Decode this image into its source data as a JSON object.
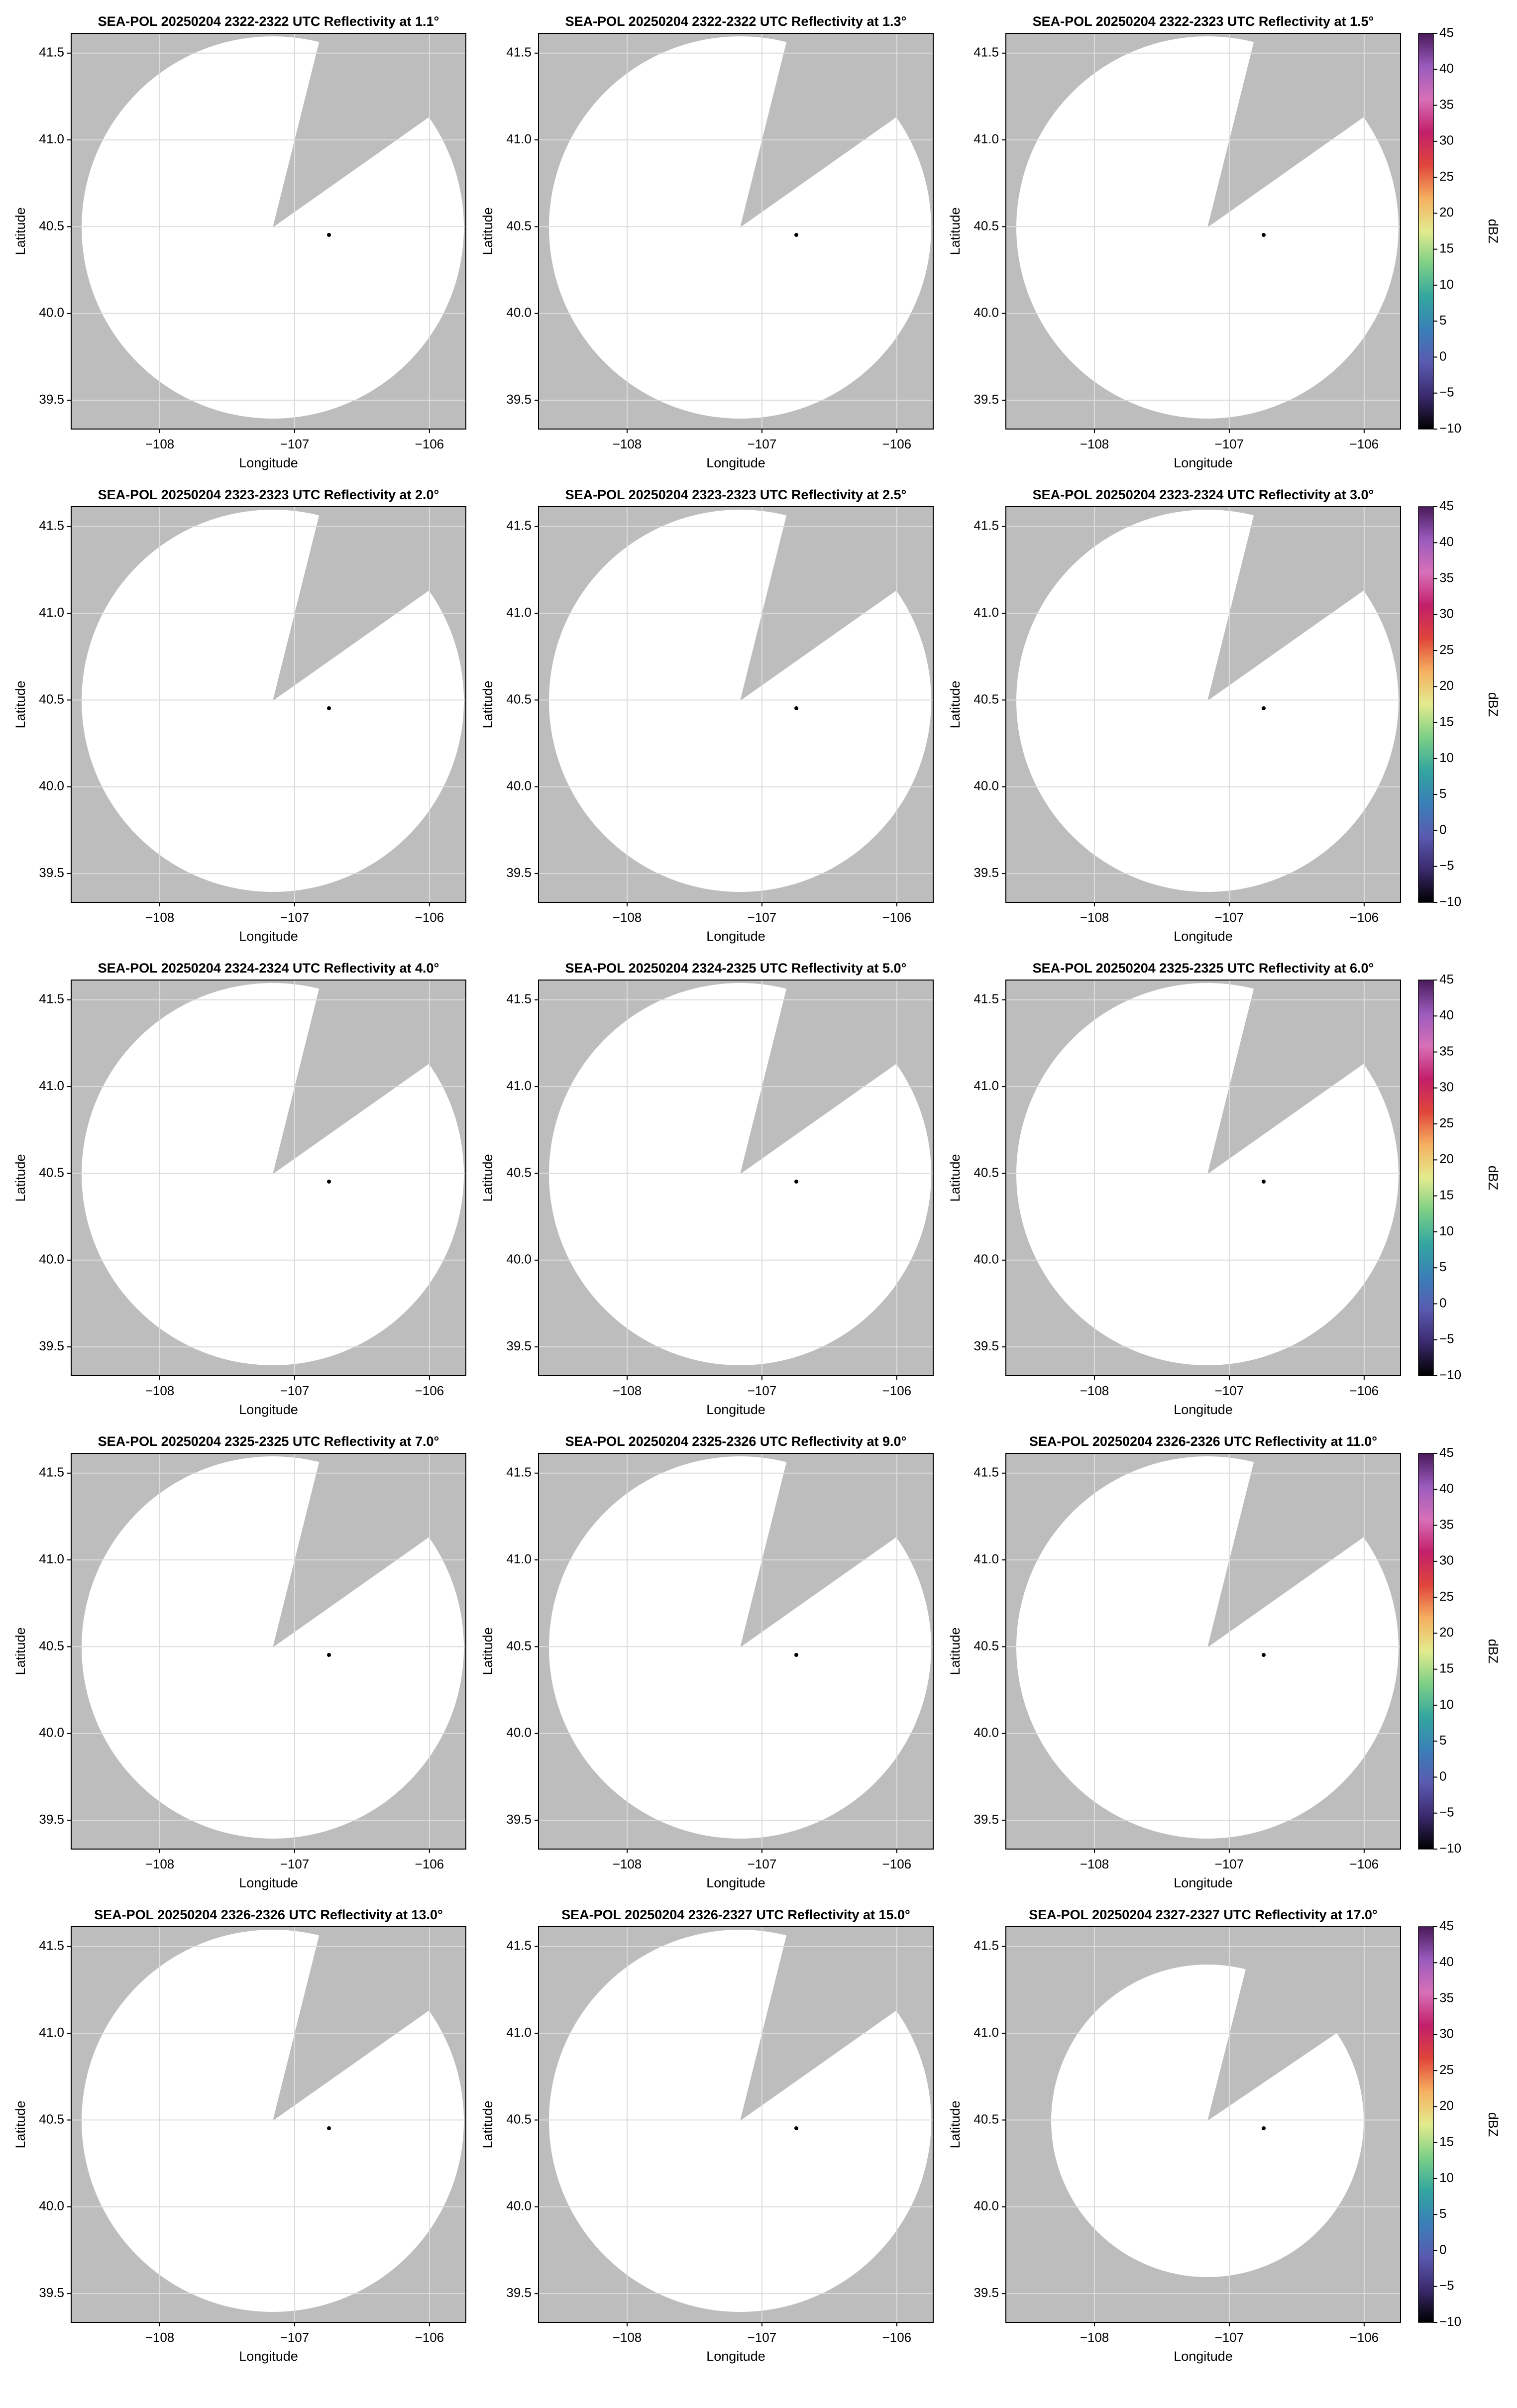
{
  "chart_data": [
    {
      "type": "map",
      "title": "SEA-POL 20250204 2322-2322 UTC Reflectivity at 1.1°",
      "xlabel": "Longitude",
      "ylabel": "Latitude",
      "xlim": [
        -108.657,
        -105.73
      ],
      "ylim": [
        39.334,
        41.614
      ],
      "xticks": [
        {
          "value": -108,
          "label": "−108"
        },
        {
          "value": -107,
          "label": "−107"
        },
        {
          "value": -106,
          "label": "−106"
        }
      ],
      "yticks": [
        39.5,
        {
          "value": 40,
          "label": "40.0"
        },
        40.5,
        {
          "value": 41,
          "label": "41.0"
        },
        41.5
      ],
      "grid": true
    },
    {
      "type": "map",
      "title": "SEA-POL 20250204 2322-2322 UTC Reflectivity at 1.3°",
      "xlabel": "Longitude",
      "ylabel": "Latitude",
      "xlim": [
        -108.657,
        -105.73
      ],
      "ylim": [
        39.334,
        41.614
      ],
      "xticks": [
        {
          "value": -108,
          "label": "−108"
        },
        {
          "value": -107,
          "label": "−107"
        },
        {
          "value": -106,
          "label": "−106"
        }
      ],
      "yticks": [
        39.5,
        {
          "value": 40,
          "label": "40.0"
        },
        40.5,
        {
          "value": 41,
          "label": "41.0"
        },
        41.5
      ],
      "grid": true
    },
    {
      "type": "map",
      "title": "SEA-POL 20250204 2322-2323 UTC Reflectivity at 1.5°",
      "xlabel": "Longitude",
      "ylabel": "Latitude",
      "xlim": [
        -108.657,
        -105.73
      ],
      "ylim": [
        39.334,
        41.614
      ],
      "xticks": [
        {
          "value": -108,
          "label": "−108"
        },
        {
          "value": -107,
          "label": "−107"
        },
        {
          "value": -106,
          "label": "−106"
        }
      ],
      "yticks": [
        39.5,
        {
          "value": 40,
          "label": "40.0"
        },
        40.5,
        {
          "value": 41,
          "label": "41.0"
        },
        41.5
      ],
      "grid": true,
      "colorbar": {
        "label": "dBZ",
        "lim": [
          -10,
          45
        ],
        "ticks": [
          {
            "value": -10,
            "label": "−10"
          },
          {
            "value": -5,
            "label": "−5"
          },
          0,
          5,
          10,
          15,
          20,
          25,
          30,
          35,
          40,
          45
        ],
        "colors": [
          "#000000",
          "#3b2a6e",
          "#5a5ab0",
          "#3a7fb8",
          "#33a6a0",
          "#7ccf86",
          "#e3eb8e",
          "#f5b060",
          "#e0453a",
          "#c21f6a",
          "#d770b8",
          "#9a5bbd",
          "#4a1a5a"
        ]
      }
    },
    {
      "type": "map",
      "title": "SEA-POL 20250204 2323-2323 UTC Reflectivity at 2.0°",
      "xlabel": "Longitude",
      "ylabel": "Latitude",
      "xlim": [
        -108.657,
        -105.73
      ],
      "ylim": [
        39.334,
        41.614
      ],
      "xticks": [
        {
          "value": -108,
          "label": "−108"
        },
        {
          "value": -107,
          "label": "−107"
        },
        {
          "value": -106,
          "label": "−106"
        }
      ],
      "yticks": [
        39.5,
        {
          "value": 40,
          "label": "40.0"
        },
        40.5,
        {
          "value": 41,
          "label": "41.0"
        },
        41.5
      ],
      "grid": true
    },
    {
      "type": "map",
      "title": "SEA-POL 20250204 2323-2323 UTC Reflectivity at 2.5°",
      "xlabel": "Longitude",
      "ylabel": "Latitude",
      "xlim": [
        -108.657,
        -105.73
      ],
      "ylim": [
        39.334,
        41.614
      ],
      "xticks": [
        {
          "value": -108,
          "label": "−108"
        },
        {
          "value": -107,
          "label": "−107"
        },
        {
          "value": -106,
          "label": "−106"
        }
      ],
      "yticks": [
        39.5,
        {
          "value": 40,
          "label": "40.0"
        },
        40.5,
        {
          "value": 41,
          "label": "41.0"
        },
        41.5
      ],
      "grid": true
    },
    {
      "type": "map",
      "title": "SEA-POL 20250204 2323-2324 UTC Reflectivity at 3.0°",
      "xlabel": "Longitude",
      "ylabel": "Latitude",
      "xlim": [
        -108.657,
        -105.73
      ],
      "ylim": [
        39.334,
        41.614
      ],
      "xticks": [
        {
          "value": -108,
          "label": "−108"
        },
        {
          "value": -107,
          "label": "−107"
        },
        {
          "value": -106,
          "label": "−106"
        }
      ],
      "yticks": [
        39.5,
        {
          "value": 40,
          "label": "40.0"
        },
        40.5,
        {
          "value": 41,
          "label": "41.0"
        },
        41.5
      ],
      "grid": true,
      "colorbar": {
        "label": "dBZ",
        "lim": [
          -10,
          45
        ],
        "ticks": [
          {
            "value": -10,
            "label": "−10"
          },
          {
            "value": -5,
            "label": "−5"
          },
          0,
          5,
          10,
          15,
          20,
          25,
          30,
          35,
          40,
          45
        ],
        "colors": [
          "#000000",
          "#3b2a6e",
          "#5a5ab0",
          "#3a7fb8",
          "#33a6a0",
          "#7ccf86",
          "#e3eb8e",
          "#f5b060",
          "#e0453a",
          "#c21f6a",
          "#d770b8",
          "#9a5bbd",
          "#4a1a5a"
        ]
      }
    },
    {
      "type": "map",
      "title": "SEA-POL 20250204 2324-2324 UTC Reflectivity at 4.0°",
      "xlabel": "Longitude",
      "ylabel": "Latitude",
      "xlim": [
        -108.657,
        -105.73
      ],
      "ylim": [
        39.334,
        41.614
      ],
      "xticks": [
        {
          "value": -108,
          "label": "−108"
        },
        {
          "value": -107,
          "label": "−107"
        },
        {
          "value": -106,
          "label": "−106"
        }
      ],
      "yticks": [
        39.5,
        {
          "value": 40,
          "label": "40.0"
        },
        40.5,
        {
          "value": 41,
          "label": "41.0"
        },
        41.5
      ],
      "grid": true
    },
    {
      "type": "map",
      "title": "SEA-POL 20250204 2324-2325 UTC Reflectivity at 5.0°",
      "xlabel": "Longitude",
      "ylabel": "Latitude",
      "xlim": [
        -108.657,
        -105.73
      ],
      "ylim": [
        39.334,
        41.614
      ],
      "xticks": [
        {
          "value": -108,
          "label": "−108"
        },
        {
          "value": -107,
          "label": "−107"
        },
        {
          "value": -106,
          "label": "−106"
        }
      ],
      "yticks": [
        39.5,
        {
          "value": 40,
          "label": "40.0"
        },
        40.5,
        {
          "value": 41,
          "label": "41.0"
        },
        41.5
      ],
      "grid": true
    },
    {
      "type": "map",
      "title": "SEA-POL 20250204 2325-2325 UTC Reflectivity at 6.0°",
      "xlabel": "Longitude",
      "ylabel": "Latitude",
      "xlim": [
        -108.657,
        -105.73
      ],
      "ylim": [
        39.334,
        41.614
      ],
      "xticks": [
        {
          "value": -108,
          "label": "−108"
        },
        {
          "value": -107,
          "label": "−107"
        },
        {
          "value": -106,
          "label": "−106"
        }
      ],
      "yticks": [
        39.5,
        {
          "value": 40,
          "label": "40.0"
        },
        40.5,
        {
          "value": 41,
          "label": "41.0"
        },
        41.5
      ],
      "grid": true,
      "colorbar": {
        "label": "dBZ",
        "lim": [
          -10,
          45
        ],
        "ticks": [
          {
            "value": -10,
            "label": "−10"
          },
          {
            "value": -5,
            "label": "−5"
          },
          0,
          5,
          10,
          15,
          20,
          25,
          30,
          35,
          40,
          45
        ],
        "colors": [
          "#000000",
          "#3b2a6e",
          "#5a5ab0",
          "#3a7fb8",
          "#33a6a0",
          "#7ccf86",
          "#e3eb8e",
          "#f5b060",
          "#e0453a",
          "#c21f6a",
          "#d770b8",
          "#9a5bbd",
          "#4a1a5a"
        ]
      }
    },
    {
      "type": "map",
      "title": "SEA-POL 20250204 2325-2325 UTC Reflectivity at 7.0°",
      "xlabel": "Longitude",
      "ylabel": "Latitude",
      "xlim": [
        -108.657,
        -105.73
      ],
      "ylim": [
        39.334,
        41.614
      ],
      "xticks": [
        {
          "value": -108,
          "label": "−108"
        },
        {
          "value": -107,
          "label": "−107"
        },
        {
          "value": -106,
          "label": "−106"
        }
      ],
      "yticks": [
        39.5,
        {
          "value": 40,
          "label": "40.0"
        },
        40.5,
        {
          "value": 41,
          "label": "41.0"
        },
        41.5
      ],
      "grid": true
    },
    {
      "type": "map",
      "title": "SEA-POL 20250204 2325-2326 UTC Reflectivity at 9.0°",
      "xlabel": "Longitude",
      "ylabel": "Latitude",
      "xlim": [
        -108.657,
        -105.73
      ],
      "ylim": [
        39.334,
        41.614
      ],
      "xticks": [
        {
          "value": -108,
          "label": "−108"
        },
        {
          "value": -107,
          "label": "−107"
        },
        {
          "value": -106,
          "label": "−106"
        }
      ],
      "yticks": [
        39.5,
        {
          "value": 40,
          "label": "40.0"
        },
        40.5,
        {
          "value": 41,
          "label": "41.0"
        },
        41.5
      ],
      "grid": true
    },
    {
      "type": "map",
      "title": "SEA-POL 20250204 2326-2326 UTC Reflectivity at 11.0°",
      "xlabel": "Longitude",
      "ylabel": "Latitude",
      "xlim": [
        -108.657,
        -105.73
      ],
      "ylim": [
        39.334,
        41.614
      ],
      "xticks": [
        {
          "value": -108,
          "label": "−108"
        },
        {
          "value": -107,
          "label": "−107"
        },
        {
          "value": -106,
          "label": "−106"
        }
      ],
      "yticks": [
        39.5,
        {
          "value": 40,
          "label": "40.0"
        },
        40.5,
        {
          "value": 41,
          "label": "41.0"
        },
        41.5
      ],
      "grid": true,
      "colorbar": {
        "label": "dBZ",
        "lim": [
          -10,
          45
        ],
        "ticks": [
          {
            "value": -10,
            "label": "−10"
          },
          {
            "value": -5,
            "label": "−5"
          },
          0,
          5,
          10,
          15,
          20,
          25,
          30,
          35,
          40,
          45
        ],
        "colors": [
          "#000000",
          "#3b2a6e",
          "#5a5ab0",
          "#3a7fb8",
          "#33a6a0",
          "#7ccf86",
          "#e3eb8e",
          "#f5b060",
          "#e0453a",
          "#c21f6a",
          "#d770b8",
          "#9a5bbd",
          "#4a1a5a"
        ]
      }
    },
    {
      "type": "map",
      "title": "SEA-POL 20250204 2326-2326 UTC Reflectivity at 13.0°",
      "xlabel": "Longitude",
      "ylabel": "Latitude",
      "xlim": [
        -108.657,
        -105.73
      ],
      "ylim": [
        39.334,
        41.614
      ],
      "xticks": [
        {
          "value": -108,
          "label": "−108"
        },
        {
          "value": -107,
          "label": "−107"
        },
        {
          "value": -106,
          "label": "−106"
        }
      ],
      "yticks": [
        39.5,
        {
          "value": 40,
          "label": "40.0"
        },
        40.5,
        {
          "value": 41,
          "label": "41.0"
        },
        41.5
      ],
      "grid": true
    },
    {
      "type": "map",
      "title": "SEA-POL 20250204 2326-2327 UTC Reflectivity at 15.0°",
      "xlabel": "Longitude",
      "ylabel": "Latitude",
      "xlim": [
        -108.657,
        -105.73
      ],
      "ylim": [
        39.334,
        41.614
      ],
      "xticks": [
        {
          "value": -108,
          "label": "−108"
        },
        {
          "value": -107,
          "label": "−107"
        },
        {
          "value": -106,
          "label": "−106"
        }
      ],
      "yticks": [
        39.5,
        {
          "value": 40,
          "label": "40.0"
        },
        40.5,
        {
          "value": 41,
          "label": "41.0"
        },
        41.5
      ],
      "grid": true
    },
    {
      "type": "map",
      "title": "SEA-POL 20250204 2327-2327 UTC Reflectivity at 17.0°",
      "xlabel": "Longitude",
      "ylabel": "Latitude",
      "xlim": [
        -108.657,
        -105.73
      ],
      "ylim": [
        39.334,
        41.614
      ],
      "xticks": [
        {
          "value": -108,
          "label": "−108"
        },
        {
          "value": -107,
          "label": "−107"
        },
        {
          "value": -106,
          "label": "−106"
        }
      ],
      "yticks": [
        39.5,
        {
          "value": 40,
          "label": "40.0"
        },
        40.5,
        {
          "value": 41,
          "label": "41.0"
        },
        41.5
      ],
      "grid": true,
      "colorbar": {
        "label": "dBZ",
        "lim": [
          -10,
          45
        ],
        "ticks": [
          {
            "value": -10,
            "label": "−10"
          },
          {
            "value": -5,
            "label": "−5"
          },
          0,
          5,
          10,
          15,
          20,
          25,
          30,
          35,
          40,
          45
        ],
        "colors": [
          "#000000",
          "#3b2a6e",
          "#5a5ab0",
          "#3a7fb8",
          "#33a6a0",
          "#7ccf86",
          "#e3eb8e",
          "#f5b060",
          "#e0453a",
          "#c21f6a",
          "#d770b8",
          "#9a5bbd",
          "#4a1a5a"
        ]
      }
    }
  ]
}
